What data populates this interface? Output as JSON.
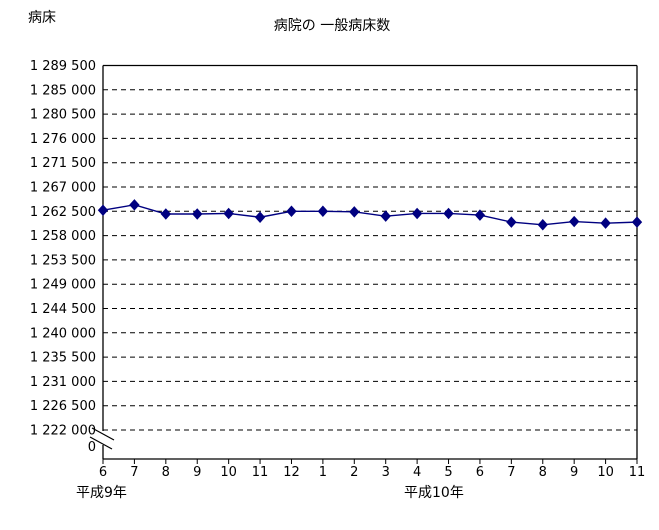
{
  "header": {
    "title": "病院の 一般病床数",
    "y_axis_unit_label": "病床"
  },
  "colors": {
    "series_line": "#000080",
    "marker": "#000080",
    "grid": "#000000",
    "axis": "#000000",
    "text": "#000000",
    "background": "#ffffff"
  },
  "chart_data": {
    "type": "line",
    "title": "病院の 一般病床数",
    "ylabel": "病床",
    "xlabel": "",
    "grid": "dashed-horizontal",
    "legend": "none",
    "axis_break_to_zero": true,
    "baseline_label": "0",
    "x_tick_labels": [
      "6",
      "7",
      "8",
      "9",
      "10",
      "11",
      "12",
      "1",
      "2",
      "3",
      "4",
      "5",
      "6",
      "7",
      "8",
      "9",
      "10",
      "11"
    ],
    "x_era_labels": [
      "平成9年",
      "平成10年"
    ],
    "y_axis": {
      "max": 1289500,
      "min_shown": 1222000,
      "tick_step": 4500
    },
    "y_ticks": [
      1289500,
      1285000,
      1280500,
      1276000,
      1271500,
      1267000,
      1262500,
      1258000,
      1253500,
      1249000,
      1244500,
      1240000,
      1235500,
      1231000,
      1226500,
      1222000
    ],
    "y_tick_labels": [
      "1 289 500",
      "1 285 000",
      "1 280 500",
      "1 276 000",
      "1 271 500",
      "1 267 000",
      "1 262 500",
      "1 258 000",
      "1 253 500",
      "1 249 000",
      "1 244 500",
      "1 240 000",
      "1 235 500",
      "1 231 000",
      "1 226 500",
      "1 222 000"
    ],
    "values": [
      1262700,
      1263700,
      1262000,
      1262000,
      1262100,
      1261400,
      1262500,
      1262500,
      1262400,
      1261600,
      1262100,
      1262100,
      1261800,
      1260500,
      1260000,
      1260600,
      1260300,
      1260500
    ]
  }
}
